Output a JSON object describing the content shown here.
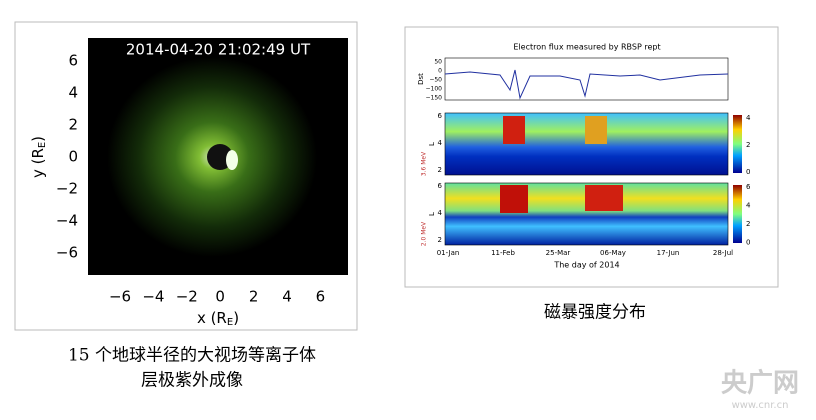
{
  "left_figure": {
    "timestamp": "2014-04-20 21:02:49 UT",
    "y_ticks": [
      "6",
      "4",
      "2",
      "0",
      "−2",
      "−4",
      "−6"
    ],
    "x_ticks": [
      "−6",
      "−4",
      "−2",
      "0",
      "2",
      "4",
      "6"
    ],
    "y_label": {
      "main": "y (R",
      "sub": "E",
      "close": ")"
    },
    "x_label": {
      "main": "x (R",
      "sub": "E",
      "close": ")"
    },
    "caption": [
      "15 个地球半径的大视场等离子体",
      "层极紫外成像"
    ]
  },
  "right_figure": {
    "title": "Electron flux measured by RBSP rept",
    "dst_label": "Dst",
    "dst_ticks": [
      "50",
      "0",
      "−50",
      "−100",
      "−150"
    ],
    "l_label": "L",
    "l_ticks": [
      "6",
      "4",
      "2"
    ],
    "panel_energies": [
      "3.6 MeV",
      "2.0 MeV"
    ],
    "colorbar_ticks": [
      "4",
      "2",
      "0"
    ],
    "colorbar2_ticks": [
      "6",
      "4",
      "2",
      "0"
    ],
    "x_ticks": [
      "01-Jan",
      "11-Feb",
      "25-Mar",
      "06-May",
      "17-Jun",
      "28-Jul"
    ],
    "x_label": "The day of 2014",
    "caption": "磁暴强度分布"
  },
  "watermark": {
    "logo": "央广网",
    "url": "www.cnr.cn"
  }
}
